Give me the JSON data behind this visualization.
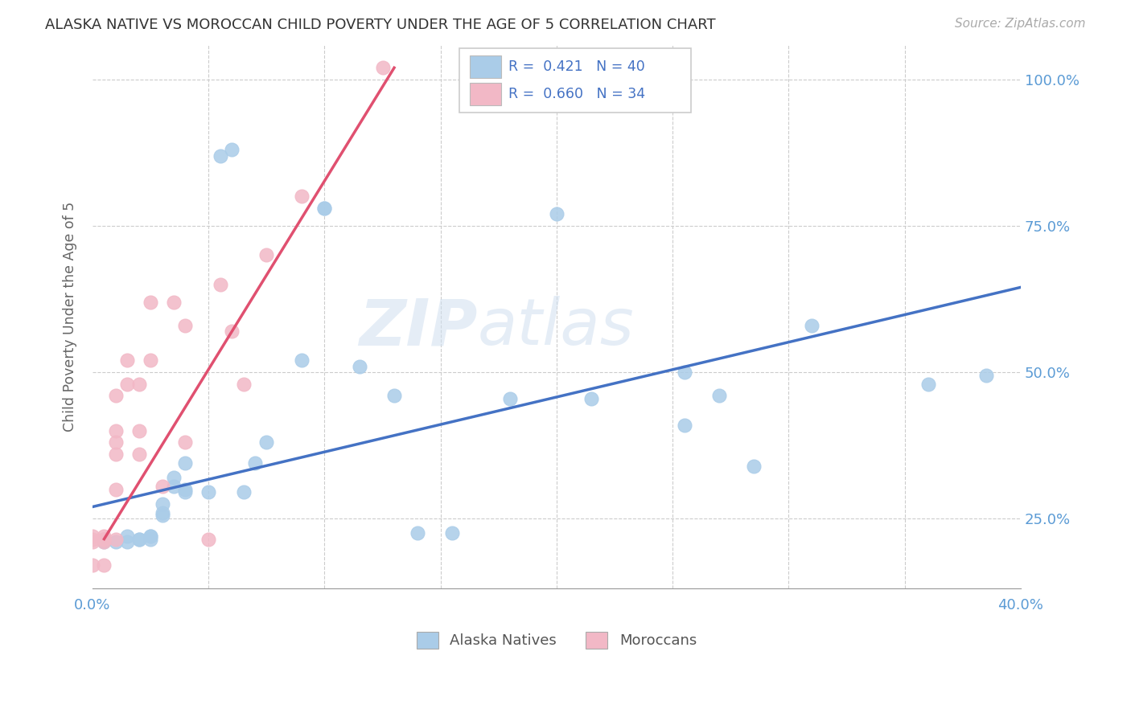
{
  "title": "ALASKA NATIVE VS MOROCCAN CHILD POVERTY UNDER THE AGE OF 5 CORRELATION CHART",
  "source": "Source: ZipAtlas.com",
  "ylabel": "Child Poverty Under the Age of 5",
  "xlabel": "",
  "xlim": [
    0.0,
    0.4
  ],
  "ylim": [
    0.13,
    1.06
  ],
  "xticks": [
    0.0,
    0.05,
    0.1,
    0.15,
    0.2,
    0.25,
    0.3,
    0.35,
    0.4
  ],
  "xticklabels": [
    "0.0%",
    "",
    "",
    "",
    "",
    "",
    "",
    "",
    "40.0%"
  ],
  "yticks": [
    0.25,
    0.5,
    0.75,
    1.0
  ],
  "yticklabels": [
    "25.0%",
    "50.0%",
    "75.0%",
    "100.0%"
  ],
  "r_blue": 0.421,
  "n_blue": 40,
  "r_pink": 0.66,
  "n_pink": 34,
  "legend_labels": [
    "Alaska Natives",
    "Moroccans"
  ],
  "blue_color": "#aacce8",
  "pink_color": "#f2b8c6",
  "blue_line_color": "#4472c4",
  "pink_line_color": "#e05070",
  "watermark_zip": "ZIP",
  "watermark_atlas": "atlas",
  "background_color": "#ffffff",
  "grid_color": "#cccccc",
  "title_color": "#333333",
  "axis_label_color": "#5b9bd5",
  "blue_scatter_x": [
    0.005,
    0.01,
    0.015,
    0.015,
    0.02,
    0.02,
    0.025,
    0.025,
    0.025,
    0.03,
    0.03,
    0.03,
    0.035,
    0.035,
    0.04,
    0.04,
    0.04,
    0.05,
    0.055,
    0.06,
    0.065,
    0.07,
    0.075,
    0.09,
    0.1,
    0.1,
    0.115,
    0.13,
    0.14,
    0.155,
    0.18,
    0.2,
    0.215,
    0.255,
    0.255,
    0.27,
    0.285,
    0.31,
    0.36,
    0.385
  ],
  "blue_scatter_y": [
    0.21,
    0.21,
    0.21,
    0.22,
    0.215,
    0.215,
    0.22,
    0.22,
    0.215,
    0.255,
    0.26,
    0.275,
    0.32,
    0.305,
    0.3,
    0.345,
    0.295,
    0.295,
    0.87,
    0.88,
    0.295,
    0.345,
    0.38,
    0.52,
    0.78,
    0.78,
    0.51,
    0.46,
    0.225,
    0.225,
    0.455,
    0.77,
    0.455,
    0.5,
    0.41,
    0.46,
    0.34,
    0.58,
    0.48,
    0.495
  ],
  "pink_scatter_x": [
    0.0,
    0.0,
    0.0,
    0.0,
    0.005,
    0.005,
    0.005,
    0.005,
    0.005,
    0.005,
    0.01,
    0.01,
    0.01,
    0.01,
    0.01,
    0.01,
    0.015,
    0.015,
    0.02,
    0.02,
    0.02,
    0.025,
    0.025,
    0.03,
    0.035,
    0.04,
    0.04,
    0.05,
    0.055,
    0.06,
    0.065,
    0.075,
    0.09,
    0.125
  ],
  "pink_scatter_y": [
    0.21,
    0.215,
    0.22,
    0.17,
    0.21,
    0.22,
    0.215,
    0.215,
    0.215,
    0.17,
    0.3,
    0.36,
    0.4,
    0.46,
    0.38,
    0.215,
    0.48,
    0.52,
    0.36,
    0.4,
    0.48,
    0.52,
    0.62,
    0.305,
    0.62,
    0.38,
    0.58,
    0.215,
    0.65,
    0.57,
    0.48,
    0.7,
    0.8,
    1.02
  ],
  "blue_trendline_x": [
    0.0,
    0.4
  ],
  "blue_trendline_y": [
    0.27,
    0.645
  ],
  "pink_trendline_x": [
    0.005,
    0.13
  ],
  "pink_trendline_y": [
    0.215,
    1.02
  ]
}
